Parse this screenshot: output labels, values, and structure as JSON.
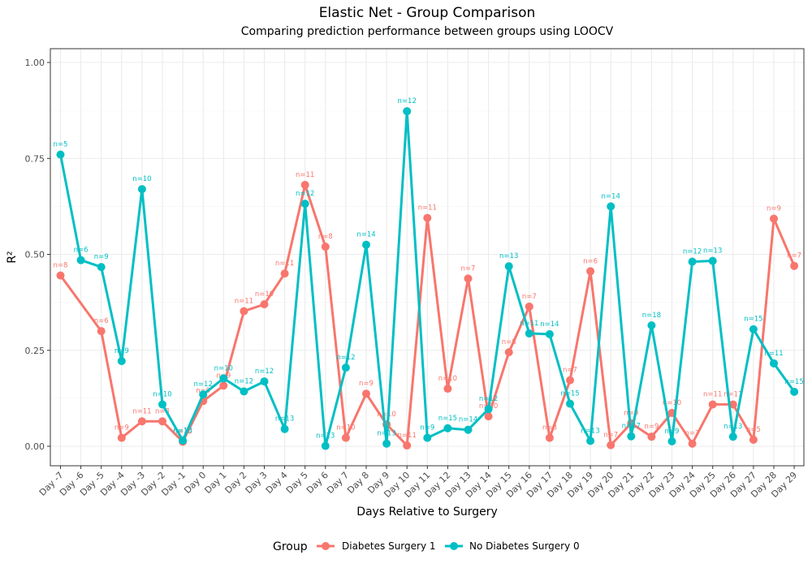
{
  "chart_data": {
    "type": "line",
    "title": "Elastic Net - Group Comparison",
    "subtitle": "Comparing prediction performance between groups using LOOCV",
    "xlabel": "Days Relative to Surgery",
    "ylabel": "R²",
    "ylim": [
      0,
      1
    ],
    "yticks": [
      "0.00",
      "0.25",
      "0.50",
      "0.75",
      "1.00"
    ],
    "yticks_values": [
      0,
      0.25,
      0.5,
      0.75,
      1.0
    ],
    "grid": true,
    "legend_position": "bottom",
    "legend_title": "Group",
    "categories": [
      "Day -7",
      "Day -6",
      "Day -5",
      "Day -4",
      "Day -3",
      "Day -2",
      "Day -1",
      "Day 0",
      "Day 1",
      "Day 2",
      "Day 3",
      "Day 4",
      "Day 5",
      "Day 6",
      "Day 7",
      "Day 8",
      "Day 9",
      "Day 10",
      "Day 11",
      "Day 12",
      "Day 13",
      "Day 14",
      "Day 15",
      "Day 16",
      "Day 17",
      "Day 18",
      "Day 19",
      "Day 20",
      "Day 21",
      "Day 22",
      "Day 23",
      "Day 24",
      "Day 25",
      "Day 26",
      "Day 27",
      "Day 28",
      "Day 29"
    ],
    "series": [
      {
        "name": "Diabetes Surgery 1",
        "color": "#F8766D",
        "values": [
          0.445,
          null,
          0.3,
          0.022,
          0.065,
          0.065,
          0.012,
          0.118,
          0.158,
          0.352,
          0.37,
          0.45,
          0.681,
          0.52,
          0.022,
          0.137,
          0.057,
          0.002,
          0.595,
          0.15,
          0.437,
          0.078,
          0.245,
          0.364,
          0.022,
          0.172,
          0.456,
          0.003,
          0.06,
          0.025,
          0.087,
          0.007,
          0.109,
          0.109,
          0.017,
          0.593,
          0.47
        ],
        "labels": [
          "n=8",
          "",
          "n=6",
          "n=9",
          "n=11",
          "n=8",
          "n=10",
          "n=9",
          "n=9",
          "n=11",
          "n=10",
          "n=11",
          "n=11",
          "n=8",
          "n=10",
          "n=9",
          "n=10",
          "n=11",
          "n=11",
          "n=10",
          "n=7",
          "n=10",
          "n=8",
          "n=7",
          "n=8",
          "n=7",
          "n=6",
          "n=7",
          "n=9",
          "n=9",
          "n=10",
          "n=7",
          "n=11",
          "n=11",
          "n=5",
          "n=9",
          "n=7"
        ]
      },
      {
        "name": "No Diabetes Surgery 0",
        "color": "#00BFC4",
        "values": [
          0.76,
          0.485,
          0.467,
          0.222,
          0.67,
          0.109,
          0.015,
          0.135,
          0.177,
          0.143,
          0.169,
          0.045,
          0.632,
          0.001,
          0.205,
          0.525,
          0.007,
          0.873,
          0.022,
          0.047,
          0.043,
          0.097,
          0.469,
          0.294,
          0.292,
          0.111,
          0.014,
          0.625,
          0.026,
          0.315,
          0.013,
          0.481,
          0.483,
          0.025,
          0.305,
          0.216,
          0.142
        ],
        "labels": [
          "n=5",
          "n=6",
          "n=9",
          "n=9",
          "n=10",
          "n=10",
          "n=13",
          "n=12",
          "n=10",
          "n=12",
          "n=12",
          "n=13",
          "n=12",
          "n=13",
          "n=12",
          "n=14",
          "n=13",
          "n=12",
          "n=9",
          "n=15",
          "n=14",
          "n=12",
          "n=13",
          "n=11",
          "n=14",
          "n=15",
          "n=13",
          "n=14",
          "n=17",
          "n=18",
          "n=9",
          "n=12",
          "n=13",
          "n=13",
          "n=15",
          "n=11",
          "n=15"
        ]
      }
    ]
  }
}
